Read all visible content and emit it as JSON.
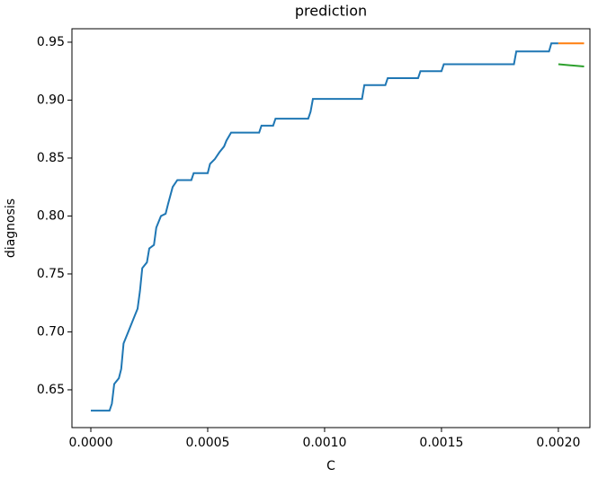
{
  "chart_data": {
    "type": "line",
    "title": "prediction",
    "x_label": "C",
    "y_label": "diagnosis",
    "xlim": [
      -8.08e-05,
      0.002135
    ],
    "ylim": [
      0.6174,
      0.9616
    ],
    "xticks": [
      {
        "value": 0,
        "label": "0.0000"
      },
      {
        "value": 0.0005,
        "label": "0.0005"
      },
      {
        "value": 0.001,
        "label": "0.0010"
      },
      {
        "value": 0.0015,
        "label": "0.0015"
      },
      {
        "value": 0.002,
        "label": "0.0020"
      }
    ],
    "yticks": [
      0.65,
      {
        "value": 0.7,
        "label": "0.70"
      },
      0.75,
      {
        "value": 0.8,
        "label": "0.80"
      },
      0.85,
      {
        "value": 0.9,
        "label": "0.90"
      },
      0.95
    ],
    "series": [
      {
        "color": "#1f77b4",
        "x": [
          0,
          8e-05,
          9e-05,
          0.0001,
          0.00012,
          0.00013,
          0.00014,
          0.00016,
          0.00018,
          0.0002,
          0.00021,
          0.00022,
          0.00024,
          0.00025,
          0.00027,
          0.00028,
          0.0003,
          0.00032,
          0.00033,
          0.00035,
          0.00037,
          0.00043,
          0.00044,
          0.0005,
          0.00051,
          0.00053,
          0.00055,
          0.00057,
          0.00058,
          0.0006,
          0.00072,
          0.00073,
          0.00078,
          0.00079,
          0.00093,
          0.00094,
          0.00095,
          0.00116,
          0.00117,
          0.00126,
          0.00127,
          0.0014,
          0.00141,
          0.0015,
          0.00151,
          0.00181,
          0.00182,
          0.00196,
          0.00197,
          0.002
        ],
        "values": [
          0.632,
          0.632,
          0.638,
          0.655,
          0.66,
          0.668,
          0.69,
          0.7,
          0.71,
          0.72,
          0.735,
          0.755,
          0.76,
          0.772,
          0.775,
          0.79,
          0.8,
          0.802,
          0.81,
          0.825,
          0.831,
          0.831,
          0.837,
          0.837,
          0.845,
          0.849,
          0.855,
          0.86,
          0.865,
          0.872,
          0.872,
          0.878,
          0.878,
          0.884,
          0.884,
          0.89,
          0.901,
          0.901,
          0.913,
          0.913,
          0.919,
          0.919,
          0.925,
          0.925,
          0.931,
          0.931,
          0.942,
          0.942,
          0.949,
          0.949
        ]
      },
      {
        "color": "#ff7f0e",
        "x": [
          0.002,
          0.00211
        ],
        "values": [
          0.949,
          0.949
        ]
      },
      {
        "color": "#2ca02c",
        "x": [
          0.002,
          0.00211
        ],
        "values": [
          0.931,
          0.929
        ]
      }
    ]
  }
}
